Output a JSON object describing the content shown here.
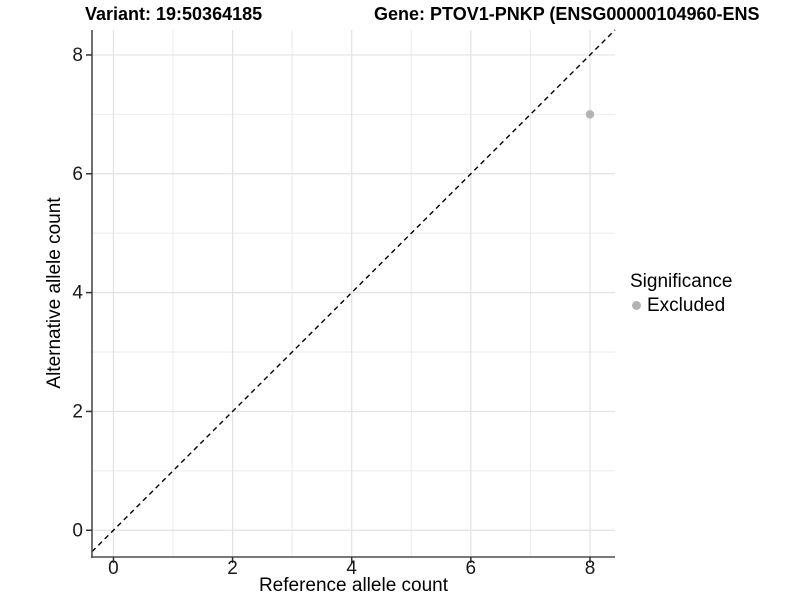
{
  "header": {
    "variant_title": "Variant: 19:50364185",
    "gene_title": "Gene: PTOV1-PNKP (ENSG00000104960-ENS"
  },
  "chart_data": {
    "type": "scatter",
    "xlabel": "Reference allele count",
    "ylabel": "Alternative allele count",
    "xlim": [
      -0.36,
      8.42
    ],
    "ylim": [
      -0.45,
      8.42
    ],
    "xticks": [
      0,
      2,
      4,
      6,
      8
    ],
    "yticks": [
      0,
      2,
      4,
      6,
      8
    ],
    "xticklabels": [
      "0",
      "2",
      "4",
      "6",
      "8"
    ],
    "yticklabels": [
      "0",
      "2",
      "4",
      "6",
      "8"
    ],
    "xminor": [
      1,
      3,
      5,
      7
    ],
    "yminor": [
      1,
      3,
      5,
      7
    ],
    "grid": {
      "major": true,
      "minor": true
    },
    "points": [
      {
        "x": 8,
        "y": 7,
        "significance": "Excluded"
      }
    ],
    "reference_line": {
      "type": "identity",
      "slope": 1,
      "intercept": 0,
      "style": "dashed"
    },
    "legend": {
      "title": "Significance",
      "position": "right",
      "entries": [
        {
          "label": "Excluded",
          "marker": "circle",
          "color": "#b3b3b3"
        }
      ]
    }
  },
  "colors": {
    "point": "#b3b3b3",
    "grid_major": "#e2e2e2",
    "grid_minor": "#ededed",
    "axis_line": "#4d4d4d",
    "tick_mark": "#333333",
    "tick_label": "#1a1a1a",
    "reference_line": "#000000",
    "background": "#ffffff"
  }
}
